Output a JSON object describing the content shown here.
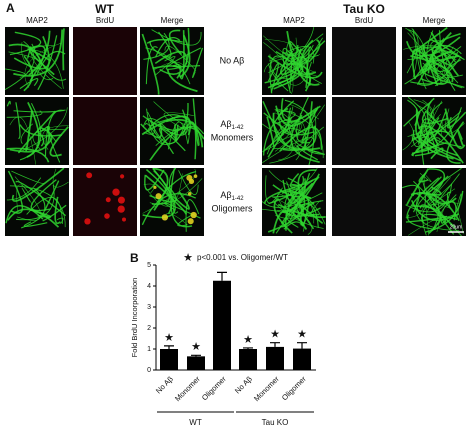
{
  "panel_a": {
    "label": "A",
    "groups": [
      {
        "title": "WT",
        "columns": [
          "MAP2",
          "BrdU",
          "Merge"
        ]
      },
      {
        "title": "Tau KO",
        "columns": [
          "MAP2",
          "BrdU",
          "Merge"
        ]
      }
    ],
    "rows": [
      {
        "main": "No Aβ"
      },
      {
        "main": "Aβ",
        "sub": "1-42",
        "line2": "Monomers"
      },
      {
        "main": "Aβ",
        "sub": "1-42",
        "line2": "Oligomers"
      }
    ],
    "scale_bar": "20μm"
  },
  "chart_data": {
    "type": "bar",
    "panel_label": "B",
    "significance_marker": "★",
    "annotation": "p<0.001 vs. Oligomer/WT",
    "y_label": "Fold BrdU Incorporation",
    "categories": [
      "No Aβ",
      "Monomer",
      "Oligomer",
      "No Aβ",
      "Monomer",
      "Oligomer"
    ],
    "values": [
      1.0,
      0.65,
      4.25,
      1.0,
      1.1,
      1.02
    ],
    "errors": [
      0.15,
      0.05,
      0.4,
      0.05,
      0.2,
      0.28
    ],
    "significant": [
      true,
      true,
      false,
      true,
      true,
      true
    ],
    "groups": [
      {
        "name": "WT",
        "members": [
          0,
          1,
          2
        ]
      },
      {
        "name": "Tau KO",
        "members": [
          3,
          4,
          5
        ]
      }
    ],
    "color": "#000000",
    "ylim": [
      0,
      5
    ],
    "yticks": [
      0,
      1,
      2,
      3,
      4,
      5
    ]
  }
}
